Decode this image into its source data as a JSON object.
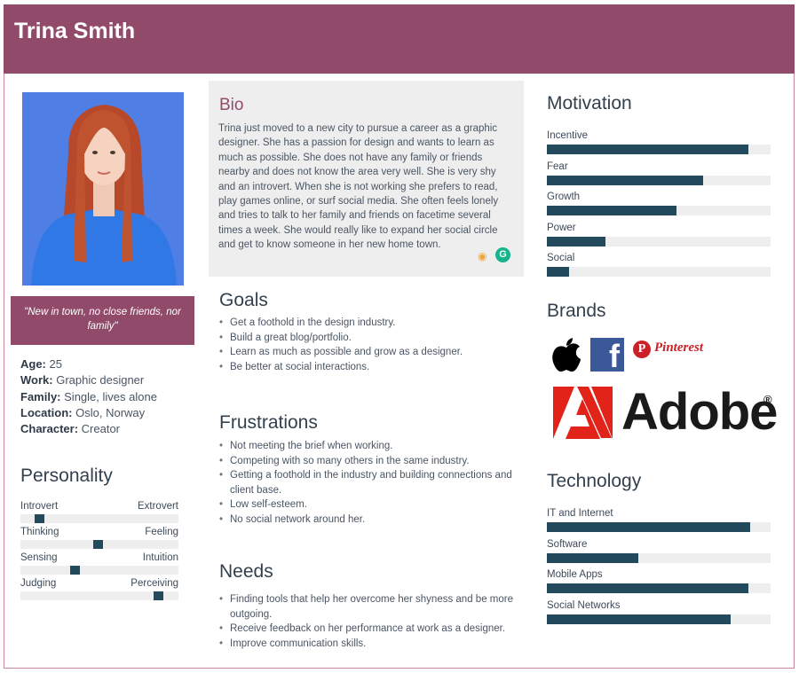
{
  "persona": {
    "name": "Trina Smith"
  },
  "quote": "\"New in town, no close friends, nor family\"",
  "facts": [
    {
      "label": "Age:",
      "value": "25"
    },
    {
      "label": "Work:",
      "value": "Graphic designer"
    },
    {
      "label": "Family:",
      "value": "Single, lives alone"
    },
    {
      "label": "Location:",
      "value": "Oslo, Norway"
    },
    {
      "label": "Character:",
      "value": "Creator"
    }
  ],
  "personality": {
    "title": "Personality",
    "scales": [
      {
        "left": "Introvert",
        "right": "Extrovert",
        "value": 0.12
      },
      {
        "left": "Thinking",
        "right": "Feeling",
        "value": 0.49
      },
      {
        "left": "Sensing",
        "right": "Intuition",
        "value": 0.34
      },
      {
        "left": "Judging",
        "right": "Perceiving",
        "value": 0.87
      }
    ]
  },
  "bio": {
    "title": "Bio",
    "text": "Trina just moved to a new city to pursue a career as a graphic designer. She has a passion for design and wants to learn as much as possible. She does not have any family or friends nearby and does not know the area very well. She is very shy and an introvert. When she is not working she prefers to read, play games online, or surf social media. She often feels lonely and tries to talk to her family and friends on facetime several times a week. She would really like to expand her social circle and get to know someone in her new home town."
  },
  "goals": {
    "title": "Goals",
    "items": [
      "Get a foothold in the design industry.",
      "Build a great blog/portfolio.",
      "Learn as much as possible and grow as a designer.",
      "Be better at social interactions."
    ]
  },
  "frustrations": {
    "title": "Frustrations",
    "items": [
      "Not meeting the brief when working.",
      "Competing with so many others in the same industry.",
      "Getting a foothold in the industry and building connections and client base.",
      "Low self-esteem.",
      "No social network around her."
    ]
  },
  "needs": {
    "title": "Needs",
    "items": [
      "Finding tools that help her overcome her shyness and be more outgoing.",
      "Receive feedback on her performance at work as a designer.",
      "Improve communication skills."
    ]
  },
  "motivation": {
    "title": "Motivation",
    "bars": [
      {
        "label": "Incentive",
        "value": 0.9
      },
      {
        "label": "Fear",
        "value": 0.7
      },
      {
        "label": "Growth",
        "value": 0.58
      },
      {
        "label": "Power",
        "value": 0.26
      },
      {
        "label": "Social",
        "value": 0.1
      }
    ]
  },
  "brands": {
    "title": "Brands",
    "logos": [
      "apple-logo",
      "facebook-logo",
      "pinterest-logo",
      "adobe-logo"
    ],
    "pinterest_word": "Pinterest",
    "adobe_word": "Adobe",
    "adobe_reg": "®",
    "facebook_letter": "f",
    "pinterest_letter": "P"
  },
  "technology": {
    "title": "Technology",
    "bars": [
      {
        "label": "IT and Internet",
        "value": 0.91
      },
      {
        "label": "Software",
        "value": 0.41
      },
      {
        "label": "Mobile Apps",
        "value": 0.9
      },
      {
        "label": "Social Networks",
        "value": 0.82
      }
    ]
  },
  "colors": {
    "accent": "#924a6b",
    "bar": "#234a5c",
    "track": "#eeeeee",
    "photo_bg": "#4f7ee5"
  }
}
